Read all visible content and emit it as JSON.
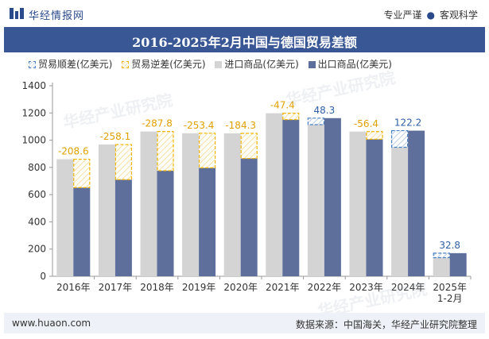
{
  "header": {
    "brand": "华经情报网",
    "tag_left": "专业严谨",
    "tag_sep": "●",
    "tag_right": "客观科学"
  },
  "watermark": "华经产业研究院",
  "footer": {
    "website": "www.huaon.com",
    "source": "数据来源：中国海关，华经产业研究院整理"
  },
  "colors": {
    "title_bar": "#3a5795",
    "import": "#d4d4d4",
    "export": "#5f6f9c",
    "surplus": "#4a7fc0",
    "deficit": "#f0b400"
  },
  "chart_data": {
    "type": "bar",
    "title": "2016-2025年2月中国与德国贸易差额",
    "legend_position": "top",
    "legend": [
      "贸易顺差(亿美元)",
      "贸易逆差(亿美元)",
      "进口商品(亿美元)",
      "出口商品(亿美元)"
    ],
    "categories": [
      "2016年",
      "2017年",
      "2018年",
      "2019年",
      "2020年",
      "2021年",
      "2022年",
      "2023年",
      "2024年",
      "2025年\n1-2月"
    ],
    "ylim": [
      0,
      1400
    ],
    "yticks": [
      0,
      200,
      400,
      600,
      800,
      1000,
      1200,
      1400
    ],
    "grid": false,
    "series": [
      {
        "name": "进口商品(亿美元)",
        "values": [
          860,
          968,
          1064,
          1051,
          1050,
          1198,
          1114,
          1063,
          948,
          137
        ]
      },
      {
        "name": "出口商品(亿美元)",
        "values": [
          652,
          710,
          776,
          797,
          866,
          1151,
          1162,
          1007,
          1070,
          170
        ]
      }
    ],
    "balance": {
      "values": [
        -208.6,
        -258.1,
        -287.8,
        -253.4,
        -184.3,
        -47.4,
        48.3,
        -56.4,
        122.2,
        32.8
      ],
      "labels": [
        "-208.6",
        "-258.1",
        "-287.8",
        "-253.4",
        "-184.3",
        "-47.4",
        "48.3",
        "-56.4",
        "122.2",
        "32.8"
      ]
    }
  }
}
